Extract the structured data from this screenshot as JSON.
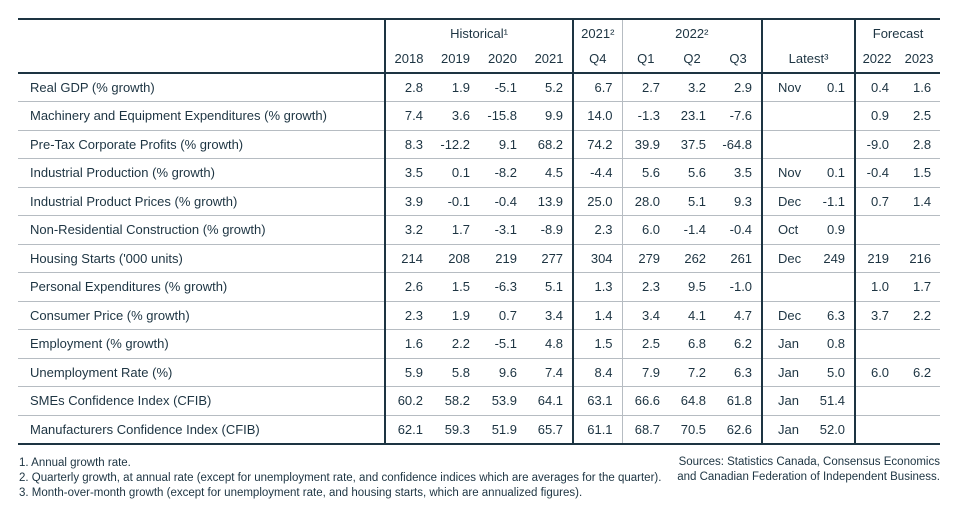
{
  "colors": {
    "text": "#1d3442",
    "thick_rule": "#1d3442",
    "thin_rule": "#b6bcc2",
    "background": "#ffffff"
  },
  "table": {
    "header": {
      "historical": "Historical¹",
      "historical_years": [
        "2018",
        "2019",
        "2020",
        "2021"
      ],
      "y2021_group": "2021²",
      "q4": "Q4",
      "y2022_group": "2022²",
      "quarters": [
        "Q1",
        "Q2",
        "Q3"
      ],
      "latest": "Latest³",
      "forecast": "Forecast",
      "forecast_years": [
        "2022",
        "2023"
      ]
    },
    "rows": [
      {
        "label": "Real GDP (% growth)",
        "cells": [
          "2.8",
          "1.9",
          "-5.1",
          "5.2",
          "6.7",
          "2.7",
          "3.2",
          "2.9",
          "Nov",
          "0.1",
          "0.4",
          "1.6"
        ]
      },
      {
        "label": "Machinery and Equipment Expenditures (% growth)",
        "cells": [
          "7.4",
          "3.6",
          "-15.8",
          "9.9",
          "14.0",
          "-1.3",
          "23.1",
          "-7.6",
          "",
          "",
          "0.9",
          "2.5"
        ]
      },
      {
        "label": "Pre-Tax Corporate Profits (% growth)",
        "cells": [
          "8.3",
          "-12.2",
          "9.1",
          "68.2",
          "74.2",
          "39.9",
          "37.5",
          "-64.8",
          "",
          "",
          "-9.0",
          "2.8"
        ]
      },
      {
        "label": "Industrial Production (% growth)",
        "cells": [
          "3.5",
          "0.1",
          "-8.2",
          "4.5",
          "-4.4",
          "5.6",
          "5.6",
          "3.5",
          "Nov",
          "0.1",
          "-0.4",
          "1.5"
        ]
      },
      {
        "label": "Industrial Product Prices (% growth)",
        "cells": [
          "3.9",
          "-0.1",
          "-0.4",
          "13.9",
          "25.0",
          "28.0",
          "5.1",
          "9.3",
          "Dec",
          "-1.1",
          "0.7",
          "1.4"
        ]
      },
      {
        "label": "Non-Residential Construction (% growth)",
        "cells": [
          "3.2",
          "1.7",
          "-3.1",
          "-8.9",
          "2.3",
          "6.0",
          "-1.4",
          "-0.4",
          "Oct",
          "0.9",
          "",
          ""
        ]
      },
      {
        "label": "Housing Starts ('000 units)",
        "cells": [
          "214",
          "208",
          "219",
          "277",
          "304",
          "279",
          "262",
          "261",
          "Dec",
          "249",
          "219",
          "216"
        ]
      },
      {
        "label": "Personal Expenditures (% growth)",
        "cells": [
          "2.6",
          "1.5",
          "-6.3",
          "5.1",
          "1.3",
          "2.3",
          "9.5",
          "-1.0",
          "",
          "",
          "1.0",
          "1.7"
        ]
      },
      {
        "label": "Consumer Price (% growth)",
        "cells": [
          "2.3",
          "1.9",
          "0.7",
          "3.4",
          "1.4",
          "3.4",
          "4.1",
          "4.7",
          "Dec",
          "6.3",
          "3.7",
          "2.2"
        ]
      },
      {
        "label": "Employment (% growth)",
        "cells": [
          "1.6",
          "2.2",
          "-5.1",
          "4.8",
          "1.5",
          "2.5",
          "6.8",
          "6.2",
          "Jan",
          "0.8",
          "",
          ""
        ]
      },
      {
        "label": "Unemployment Rate (%)",
        "cells": [
          "5.9",
          "5.8",
          "9.6",
          "7.4",
          "8.4",
          "7.9",
          "7.2",
          "6.3",
          "Jan",
          "5.0",
          "6.0",
          "6.2"
        ]
      },
      {
        "label": "SMEs Confidence Index (CFIB)",
        "cells": [
          "60.2",
          "58.2",
          "53.9",
          "64.1",
          "63.1",
          "66.6",
          "64.8",
          "61.8",
          "Jan",
          "51.4",
          "",
          ""
        ]
      },
      {
        "label": "Manufacturers Confidence Index (CFIB)",
        "cells": [
          "62.1",
          "59.3",
          "51.9",
          "65.7",
          "61.1",
          "68.7",
          "70.5",
          "62.6",
          "Jan",
          "52.0",
          "",
          ""
        ]
      }
    ]
  },
  "footnotes": [
    "1. Annual growth rate.",
    "2. Quarterly growth, at annual rate (except for unemployment rate, and confidence indices which are averages for the quarter).",
    "3. Month-over-month growth (except for unemployment rate, and housing starts, which are annualized figures)."
  ],
  "sources": [
    "Sources: Statistics Canada, Consensus Economics",
    "and Canadian Federation of Independent Business."
  ]
}
